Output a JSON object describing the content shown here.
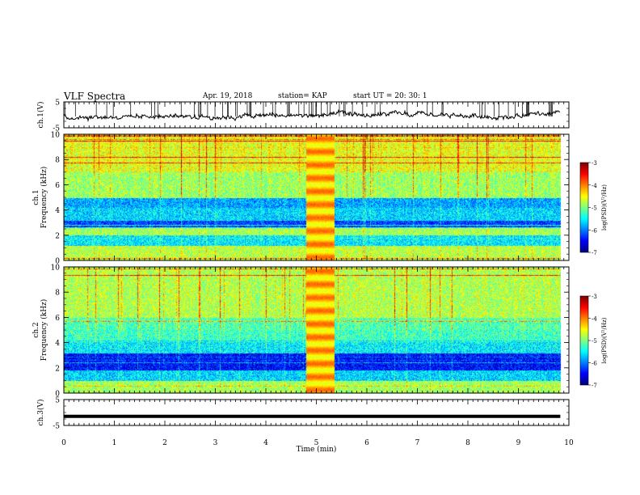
{
  "header": {
    "title": "VLF Spectra",
    "date": "Apr. 19, 2018",
    "station": "station= KAP",
    "start": "start  UT  =   20: 30: 1"
  },
  "chart_data": [
    {
      "type": "line",
      "panel": "ch1-waveform",
      "ylabel": "ch.1(V)",
      "ylim": [
        -5,
        5
      ],
      "yticks": [
        5,
        -5
      ],
      "xlim": [
        0,
        10
      ],
      "baseline_v": -0.3,
      "amplitude_v": 1.2,
      "duration_min": 9.83
    },
    {
      "type": "heatmap",
      "panel": "ch1-spectrogram",
      "ylabel": "ch.1\nFrequency (kHz)",
      "ylim": [
        0,
        10
      ],
      "yticks": [
        0,
        2,
        4,
        6,
        8,
        10
      ],
      "xlim": [
        0,
        10
      ],
      "duration_min": 9.83,
      "colorbar": {
        "label": "log(PSD)(V²/Hz)",
        "ticks": [
          -3,
          -4,
          -5,
          -6,
          -7
        ],
        "range": [
          -7,
          -3
        ]
      },
      "approx_level_by_band": [
        {
          "f_khz": [
            0,
            1.2
          ],
          "level": -4.8
        },
        {
          "f_khz": [
            1.2,
            2.0
          ],
          "level": -5.6
        },
        {
          "f_khz": [
            2.0,
            2.6
          ],
          "level": -4.9
        },
        {
          "f_khz": [
            2.6,
            3.2
          ],
          "level": -6.3
        },
        {
          "f_khz": [
            3.2,
            4.2
          ],
          "level": -5.7
        },
        {
          "f_khz": [
            4.2,
            5.0
          ],
          "level": -5.9
        },
        {
          "f_khz": [
            5.0,
            7.0
          ],
          "level": -5.0
        },
        {
          "f_khz": [
            7.0,
            10.0
          ],
          "level": -4.7
        }
      ],
      "broadband_burst_min": [
        4.8,
        5.35
      ]
    },
    {
      "type": "heatmap",
      "panel": "ch2-spectrogram",
      "ylabel": "ch.2\nFrequency (kHz)",
      "ylim": [
        0,
        10
      ],
      "yticks": [
        0,
        2,
        4,
        6,
        8,
        10
      ],
      "xlim": [
        0,
        10
      ],
      "duration_min": 9.83,
      "colorbar": {
        "label": "log(PSD)(V²/Hz)",
        "ticks": [
          -3,
          -4,
          -5,
          -6,
          -7
        ],
        "range": [
          -7,
          -3
        ]
      },
      "approx_level_by_band": [
        {
          "f_khz": [
            0,
            1.0
          ],
          "level": -4.9
        },
        {
          "f_khz": [
            1.0,
            1.8
          ],
          "level": -5.7
        },
        {
          "f_khz": [
            1.8,
            3.2
          ],
          "level": -6.5
        },
        {
          "f_khz": [
            3.2,
            4.2
          ],
          "level": -5.6
        },
        {
          "f_khz": [
            4.2,
            6.0
          ],
          "level": -5.3
        },
        {
          "f_khz": [
            6.0,
            10.0
          ],
          "level": -4.9
        }
      ],
      "broadband_burst_min": [
        4.8,
        5.35
      ]
    },
    {
      "type": "line",
      "panel": "ch3-waveform",
      "ylabel": "ch.3(V)",
      "ylim": [
        -5,
        5
      ],
      "yticks": [
        5,
        -5
      ],
      "xlim": [
        0,
        10
      ],
      "constant_v": -1.5,
      "duration_min": 9.83,
      "xlabel": "Time  (min)",
      "xticks": [
        0,
        1,
        2,
        3,
        4,
        5,
        6,
        7,
        8,
        9,
        10
      ]
    }
  ]
}
